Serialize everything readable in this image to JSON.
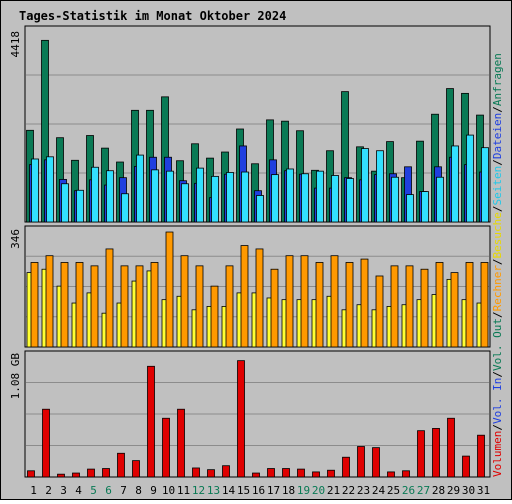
{
  "title": "Tages-Statistik im Monat Oktober 2024",
  "colors": {
    "background": "#c0c0c0",
    "grid": "#8c8c8c",
    "title": "#0033cc",
    "anfragen": "#0a7a55",
    "dateien": "#1f3fe0",
    "seiten": "#33e0ff",
    "besuche": "#ffff33",
    "rechner": "#ff9900",
    "volumen": "#e00000",
    "day_weekday": "#000000",
    "day_weekend": "#0a7a55"
  },
  "right_labels": {
    "anfragen": "Anfragen",
    "dateien": "Dateien",
    "seiten": "Seiten",
    "besuche": "Besuche",
    "rechner": "Rechner",
    "out": "Vol. Out",
    "in": "Vol. In",
    "volumen": "Volumen",
    "sep": "/"
  },
  "chart_data": [
    {
      "type": "bar",
      "panel": "requests",
      "axis_label": "4418",
      "ylim": [
        0,
        4418
      ],
      "categories": [
        "1",
        "2",
        "3",
        "4",
        "5",
        "6",
        "7",
        "8",
        "9",
        "10",
        "11",
        "12",
        "13",
        "14",
        "15",
        "16",
        "17",
        "18",
        "19",
        "20",
        "21",
        "22",
        "23",
        "24",
        "25",
        "26",
        "27",
        "28",
        "29",
        "30",
        "31"
      ],
      "weekend": [
        5,
        6,
        12,
        13,
        19,
        20,
        26,
        27
      ],
      "series": [
        {
          "name": "Anfragen",
          "values": [
            2110,
            4180,
            1940,
            1420,
            1990,
            1700,
            1380,
            2570,
            2570,
            2880,
            1410,
            1800,
            1470,
            1610,
            2140,
            1340,
            2350,
            2320,
            2100,
            1190,
            1640,
            3000,
            1730,
            1170,
            1850,
            1020,
            1860,
            2480,
            3070,
            2960,
            2460
          ]
        },
        {
          "name": "Dateien",
          "values": [
            1320,
            1430,
            980,
            720,
            970,
            850,
            1020,
            1280,
            1490,
            1490,
            950,
            890,
            560,
            1100,
            1750,
            720,
            1430,
            1180,
            1100,
            780,
            780,
            1020,
            970,
            1090,
            1110,
            1270,
            700,
            1270,
            1490,
            1320,
            1150
          ]
        },
        {
          "name": "Seiten",
          "values": [
            1450,
            1500,
            880,
            730,
            1260,
            1180,
            650,
            1540,
            1200,
            1170,
            880,
            1240,
            1050,
            1140,
            1150,
            610,
            1090,
            1220,
            1110,
            1170,
            1070,
            1000,
            1690,
            1640,
            1030,
            630,
            700,
            1030,
            1750,
            2000,
            1710
          ]
        }
      ]
    },
    {
      "type": "bar",
      "panel": "visits",
      "axis_label": "346",
      "ylim": [
        0,
        346
      ],
      "series": [
        {
          "name": "Besuche",
          "values": [
            220,
            230,
            180,
            130,
            160,
            100,
            130,
            195,
            225,
            140,
            150,
            110,
            120,
            120,
            160,
            160,
            145,
            140,
            140,
            140,
            150,
            110,
            125,
            110,
            120,
            125,
            140,
            155,
            200,
            140,
            130
          ]
        },
        {
          "name": "Rechner",
          "values": [
            250,
            270,
            250,
            250,
            240,
            290,
            240,
            240,
            250,
            340,
            270,
            240,
            180,
            240,
            300,
            290,
            230,
            270,
            270,
            250,
            270,
            250,
            260,
            210,
            240,
            240,
            230,
            250,
            220,
            250,
            250
          ]
        }
      ]
    },
    {
      "type": "bar",
      "panel": "volume",
      "axis_label": "1.08 GB",
      "ylim": [
        0,
        1.08
      ],
      "series": [
        {
          "name": "Volumen",
          "values": [
            0.055,
            0.6,
            0.025,
            0.035,
            0.07,
            0.075,
            0.21,
            0.145,
            0.98,
            0.52,
            0.6,
            0.08,
            0.065,
            0.1,
            1.03,
            0.035,
            0.075,
            0.075,
            0.07,
            0.045,
            0.06,
            0.175,
            0.27,
            0.26,
            0.045,
            0.055,
            0.41,
            0.43,
            0.52,
            0.185,
            0.37
          ]
        }
      ]
    }
  ]
}
